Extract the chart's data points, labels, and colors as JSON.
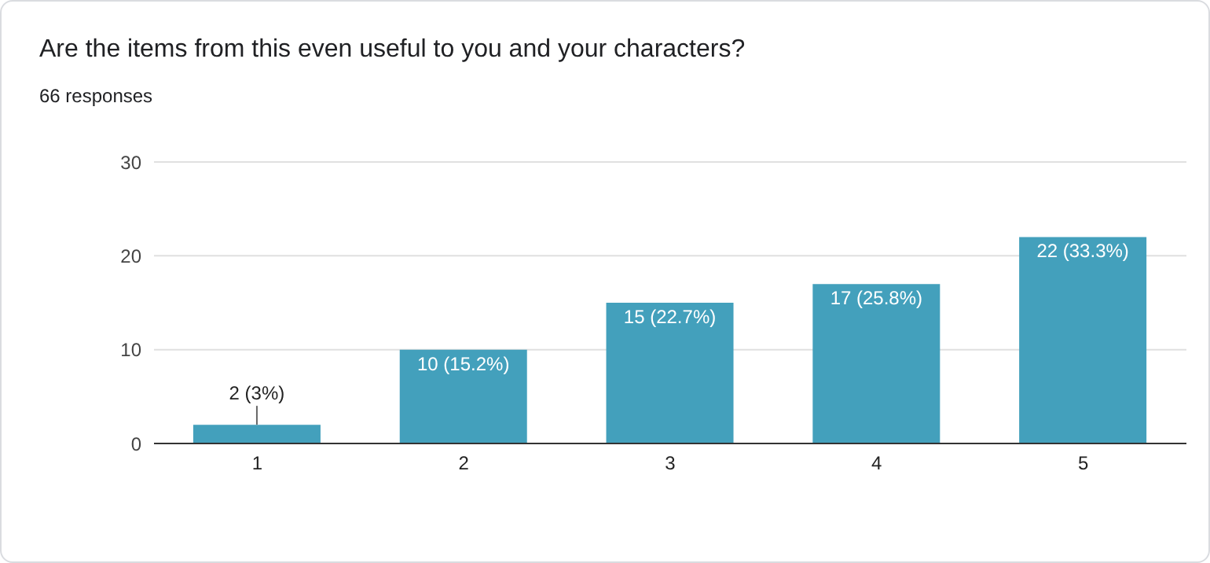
{
  "chart_data": {
    "type": "bar",
    "title": "Are the items from this even useful to you and your characters?",
    "subtitle": "66 responses",
    "categories": [
      "1",
      "2",
      "3",
      "4",
      "5"
    ],
    "values": [
      2,
      10,
      15,
      17,
      22
    ],
    "value_labels": [
      "2 (3%)",
      "10 (15.2%)",
      "15 (22.7%)",
      "17 (25.8%)",
      "22 (33.3%)"
    ],
    "color": "#43a0bc",
    "ylim": [
      0,
      30
    ],
    "yticks": [
      0,
      10,
      20,
      30
    ],
    "grid": "y"
  }
}
